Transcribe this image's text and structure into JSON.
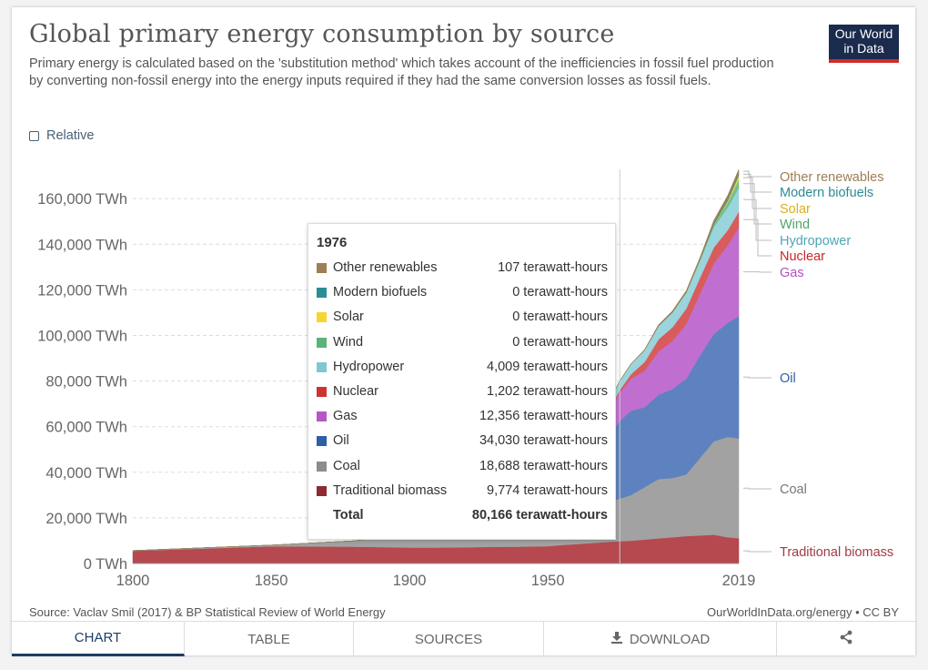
{
  "header": {
    "title": "Global primary energy consumption by source",
    "subtitle": "Primary energy is calculated based on the 'substitution method' which takes account of the inefficiencies in fossil fuel production by converting non-fossil energy into the energy inputs required if they had the same conversion losses as fossil fuels.",
    "logo_line1": "Our World",
    "logo_line2": "in Data"
  },
  "controls": {
    "relative_label": "Relative",
    "relative_checked": false
  },
  "chart_data": {
    "type": "area",
    "title": "Global primary energy consumption by source",
    "ylabel": "",
    "y_ticks": [
      "0 TWh",
      "20,000 TWh",
      "40,000 TWh",
      "60,000 TWh",
      "80,000 TWh",
      "100,000 TWh",
      "120,000 TWh",
      "140,000 TWh",
      "160,000 TWh"
    ],
    "y_tick_values": [
      0,
      20000,
      40000,
      60000,
      80000,
      100000,
      120000,
      140000,
      160000
    ],
    "x_ticks": [
      "1800",
      "1850",
      "1900",
      "1950",
      "2019"
    ],
    "x_tick_values": [
      1800,
      1850,
      1900,
      1950,
      2019
    ],
    "xlim": [
      1800,
      2019
    ],
    "ylim": [
      0,
      175000
    ],
    "grid": "horizontal dashed",
    "x": [
      1800,
      1850,
      1880,
      1900,
      1910,
      1920,
      1930,
      1940,
      1950,
      1955,
      1960,
      1965,
      1970,
      1976,
      1980,
      1985,
      1990,
      1995,
      2000,
      2005,
      2010,
      2015,
      2019
    ],
    "series": [
      {
        "name": "Traditional biomass",
        "color": "#b5494f",
        "values": [
          5556,
          7500,
          7400,
          7000,
          7000,
          7100,
          7300,
          7400,
          7600,
          8100,
          8500,
          8900,
          9300,
          9774,
          10000,
          10500,
          11000,
          11500,
          12000,
          12300,
          12600,
          11500,
          11100
        ]
      },
      {
        "name": "Coal",
        "color": "#a2a2a2",
        "values": [
          97,
          570,
          2500,
          5700,
          8000,
          9400,
          10000,
          11500,
          12600,
          14000,
          16000,
          16500,
          17000,
          18688,
          20000,
          23000,
          26000,
          26000,
          27000,
          34000,
          41000,
          44000,
          43800
        ]
      },
      {
        "name": "Oil",
        "color": "#5d82bf",
        "values": [
          0,
          0,
          20,
          180,
          460,
          1100,
          1800,
          3000,
          5400,
          8000,
          11000,
          17000,
          26000,
          34030,
          37000,
          35000,
          37000,
          39000,
          42000,
          45000,
          47000,
          50000,
          53600
        ]
      },
      {
        "name": "Gas",
        "color": "#c06fd0",
        "values": [
          0,
          0,
          10,
          60,
          150,
          250,
          550,
          870,
          2100,
          3000,
          4500,
          7000,
          10000,
          12356,
          14000,
          16000,
          19000,
          21000,
          24000,
          27000,
          31000,
          34000,
          38800
        ]
      },
      {
        "name": "Nuclear",
        "color": "#d85c5c",
        "values": [
          0,
          0,
          0,
          0,
          0,
          0,
          0,
          0,
          0,
          0,
          5,
          60,
          200,
          1202,
          1900,
          3900,
          5300,
          6000,
          6700,
          7000,
          7000,
          6600,
          7000
        ]
      },
      {
        "name": "Hydropower",
        "color": "#9ad4dc",
        "values": [
          0,
          0,
          0,
          160,
          300,
          500,
          700,
          950,
          1100,
          1600,
          2200,
          2700,
          3300,
          4009,
          4500,
          5200,
          5800,
          6500,
          7000,
          7500,
          9000,
          10000,
          10500
        ]
      },
      {
        "name": "Wind",
        "color": "#72c08c",
        "values": [
          0,
          0,
          0,
          0,
          0,
          0,
          0,
          0,
          0,
          0,
          0,
          0,
          0,
          0,
          0,
          0,
          10,
          20,
          80,
          260,
          900,
          2200,
          3540
        ]
      },
      {
        "name": "Solar",
        "color": "#f3d43c",
        "values": [
          0,
          0,
          0,
          0,
          0,
          0,
          0,
          0,
          0,
          0,
          0,
          0,
          0,
          0,
          0,
          0,
          0,
          0,
          0,
          10,
          80,
          660,
          1790
        ]
      },
      {
        "name": "Modern biofuels",
        "color": "#3a9a9e",
        "values": [
          0,
          0,
          0,
          0,
          0,
          0,
          0,
          0,
          0,
          0,
          0,
          0,
          0,
          0,
          0,
          10,
          100,
          120,
          110,
          250,
          700,
          900,
          1100
        ]
      },
      {
        "name": "Other renewables",
        "color": "#9f7e55",
        "values": [
          0,
          0,
          0,
          0,
          0,
          0,
          0,
          0,
          0,
          0,
          0,
          0,
          0,
          107,
          150,
          300,
          500,
          600,
          700,
          900,
          1200,
          1500,
          1600
        ]
      }
    ],
    "legend_placement": "right",
    "highlight_year": 1976
  },
  "tooltip": {
    "year": "1976",
    "rows": [
      {
        "label": "Other renewables",
        "value": "107 terawatt-hours",
        "color": "#9f7e55"
      },
      {
        "label": "Modern biofuels",
        "value": "0 terawatt-hours",
        "color": "#2b8c94"
      },
      {
        "label": "Solar",
        "value": "0 terawatt-hours",
        "color": "#f7d531"
      },
      {
        "label": "Wind",
        "value": "0 terawatt-hours",
        "color": "#5ab47a"
      },
      {
        "label": "Hydropower",
        "value": "4,009 terawatt-hours",
        "color": "#7dc8d2"
      },
      {
        "label": "Nuclear",
        "value": "1,202 terawatt-hours",
        "color": "#cc3333"
      },
      {
        "label": "Gas",
        "value": "12,356 terawatt-hours",
        "color": "#b557c5"
      },
      {
        "label": "Oil",
        "value": "34,030 terawatt-hours",
        "color": "#2f5ea8"
      },
      {
        "label": "Coal",
        "value": "18,688 terawatt-hours",
        "color": "#8c8c8c"
      },
      {
        "label": "Traditional biomass",
        "value": "9,774 terawatt-hours",
        "color": "#8e2a34"
      }
    ],
    "total_label": "Total",
    "total_value": "80,166 terawatt-hours"
  },
  "legend": [
    {
      "label": "Other renewables",
      "color": "#9f7e55"
    },
    {
      "label": "Modern biofuels",
      "color": "#2b8c94"
    },
    {
      "label": "Solar",
      "color": "#d9b21a"
    },
    {
      "label": "Wind",
      "color": "#4ea56c"
    },
    {
      "label": "Hydropower",
      "color": "#4ea6b4"
    },
    {
      "label": "Nuclear",
      "color": "#c62828"
    },
    {
      "label": "Gas",
      "color": "#b14fc3"
    },
    {
      "label": "Oil",
      "color": "#2f5ea8"
    },
    {
      "label": "Coal",
      "color": "#777777"
    },
    {
      "label": "Traditional biomass",
      "color": "#a33a41"
    }
  ],
  "footer": {
    "source": "Source: Vaclav Smil (2017) & BP Statistical Review of World Energy",
    "credit": "OurWorldInData.org/energy • CC BY"
  },
  "tabs": [
    {
      "label": "CHART",
      "active": true
    },
    {
      "label": "TABLE",
      "active": false
    },
    {
      "label": "SOURCES",
      "active": false
    },
    {
      "label": "DOWNLOAD",
      "active": false,
      "icon": "download-icon"
    },
    {
      "label": "",
      "active": false,
      "icon": "share-icon"
    }
  ]
}
